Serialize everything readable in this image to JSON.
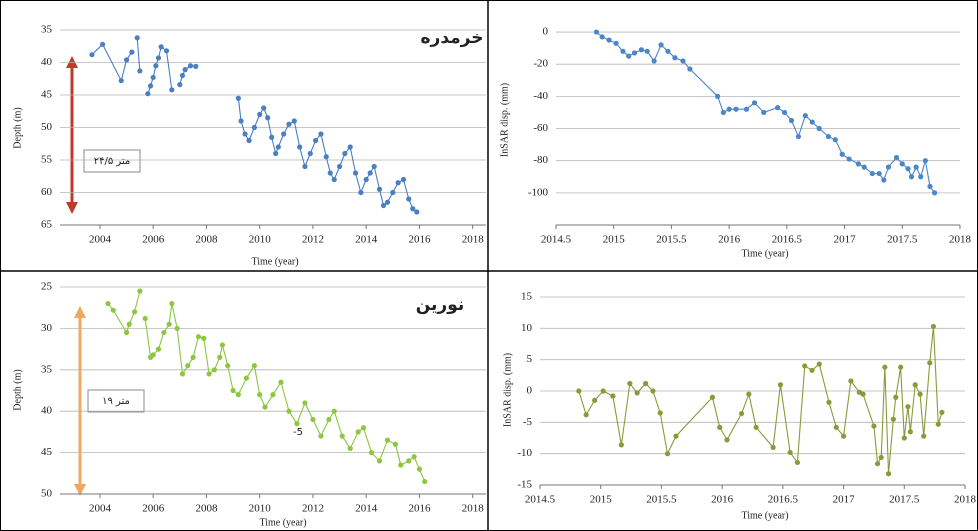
{
  "chart_data": [
    {
      "type": "line",
      "title": "خرمدره",
      "x_label": "Time (year)",
      "y_label": "Depth (m)",
      "annotations": [
        "۲۴/۵ متر"
      ],
      "color": "#4a7fc1",
      "y_inverted": true,
      "grid": true,
      "xlim": [
        2002.5,
        2018.5
      ],
      "xticks": [
        2004,
        2006,
        2008,
        2010,
        2012,
        2014,
        2016,
        2018
      ],
      "ylim": [
        35,
        65
      ],
      "yticks": [
        35,
        40,
        45,
        50,
        55,
        60,
        65
      ],
      "x": [
        2003.7,
        2004.1,
        2004.8,
        2005.0,
        2005.2,
        null,
        2005.4,
        2005.5,
        null,
        2005.8,
        2005.9,
        2006.0,
        2006.1,
        2006.2,
        2006.3,
        2006.5,
        2006.7,
        null,
        2007.0,
        2007.1,
        2007.2,
        2007.4,
        2007.6,
        null,
        2009.2,
        2009.3,
        2009.45,
        2009.6,
        2009.8,
        2010.0,
        2010.15,
        2010.3,
        2010.45,
        2010.6,
        2010.7,
        2010.9,
        2011.1,
        2011.3,
        2011.5,
        2011.7,
        2011.9,
        2012.1,
        2012.3,
        2012.5,
        2012.65,
        2012.8,
        2013.0,
        2013.2,
        2013.4,
        2013.6,
        2013.8,
        2014.0,
        2014.15,
        2014.3,
        2014.5,
        2014.65,
        2014.8,
        2015.0,
        2015.2,
        2015.4,
        2015.6,
        2015.75,
        2015.9
      ],
      "values": [
        38.8,
        37.2,
        42.8,
        39.6,
        38.4,
        null,
        36.2,
        41.3,
        null,
        44.8,
        43.6,
        42.3,
        40.5,
        39.3,
        37.6,
        38.2,
        44.2,
        null,
        43.4,
        42.0,
        41.1,
        40.5,
        40.6,
        null,
        45.5,
        49.0,
        51.0,
        52.0,
        50.0,
        48.0,
        47.0,
        48.5,
        51.5,
        54.0,
        53.0,
        51.0,
        49.5,
        49.0,
        53.0,
        56.0,
        54.0,
        52.0,
        51.0,
        54.5,
        57.0,
        58.0,
        56.0,
        54.0,
        53.0,
        57.0,
        60.0,
        58.0,
        57.0,
        56.0,
        59.5,
        62.0,
        61.5,
        60.0,
        58.5,
        58.0,
        61.0,
        62.5,
        63.0
      ]
    },
    {
      "type": "line",
      "x_label": "Time (year)",
      "y_label": "InSAR disp. (mm)",
      "color": "#4a86c8",
      "grid": true,
      "xlim": [
        2014.5,
        2018
      ],
      "xticks": [
        2014.5,
        2015,
        2015.5,
        2016,
        2016.5,
        2017,
        2017.5,
        2018
      ],
      "ylim": [
        -120,
        5
      ],
      "yticks": [
        -100,
        -80,
        -60,
        -40,
        -20,
        0
      ],
      "x": [
        2014.85,
        2014.9,
        2014.96,
        2015.02,
        2015.08,
        2015.13,
        2015.18,
        2015.24,
        2015.29,
        2015.35,
        2015.41,
        2015.47,
        2015.53,
        2015.6,
        2015.66,
        2015.9,
        2015.95,
        2016.0,
        2016.06,
        2016.15,
        2016.22,
        2016.3,
        2016.42,
        2016.48,
        2016.54,
        2016.6,
        2016.66,
        2016.72,
        2016.78,
        2016.86,
        2016.92,
        2016.98,
        2017.04,
        2017.12,
        2017.17,
        2017.24,
        2017.3,
        2017.34,
        2017.38,
        2017.45,
        2017.5,
        2017.55,
        2017.58,
        2017.62,
        2017.66,
        2017.7,
        2017.74,
        2017.78
      ],
      "values": [
        0,
        -3,
        -5,
        -7,
        -12,
        -15,
        -13,
        -11,
        -12,
        -18,
        -8,
        -12,
        -16,
        -18,
        -23,
        -40,
        -50,
        -48,
        -48,
        -48,
        -44,
        -50,
        -47,
        -50,
        -55,
        -65,
        -52,
        -56,
        -60,
        -65,
        -67,
        -76,
        -79,
        -82,
        -84,
        -88,
        -88,
        -92,
        -84,
        -78,
        -82,
        -85,
        -90,
        -84,
        -90,
        -80,
        -96,
        -100
      ]
    },
    {
      "type": "line",
      "title": "نورین",
      "x_label": "Time (year)",
      "y_label": "Depth (m)",
      "annotations": [
        "۱۹ متر",
        "-5"
      ],
      "color": "#8dc63f",
      "y_inverted": true,
      "grid": true,
      "xlim": [
        2002.5,
        2018.5
      ],
      "xticks": [
        2004,
        2006,
        2008,
        2010,
        2012,
        2014,
        2016,
        2018
      ],
      "ylim": [
        25,
        50
      ],
      "yticks": [
        25,
        30,
        35,
        40,
        45,
        50
      ],
      "x": [
        2004.3,
        2004.5,
        2005.0,
        2005.1,
        2005.3,
        2005.5,
        null,
        2005.7,
        2005.9,
        2006.0,
        2006.2,
        2006.4,
        2006.6,
        2006.7,
        2006.9,
        2007.1,
        2007.3,
        2007.5,
        2007.7,
        2007.9,
        2008.1,
        2008.3,
        2008.5,
        2008.6,
        2008.8,
        2009.0,
        2009.2,
        2009.5,
        2009.8,
        2010.0,
        2010.2,
        2010.5,
        2010.8,
        2011.1,
        2011.4,
        2011.7,
        2012.0,
        2012.3,
        2012.6,
        2012.8,
        2013.1,
        2013.4,
        2013.7,
        2013.9,
        2014.2,
        2014.5,
        2014.8,
        2015.1,
        2015.3,
        2015.6,
        2015.8,
        2016.0,
        2016.2
      ],
      "values": [
        27,
        27.8,
        30.5,
        29.5,
        28,
        25.5,
        null,
        28.8,
        33.5,
        33.2,
        32.5,
        30.5,
        29.5,
        27,
        30,
        35.5,
        34.5,
        33.5,
        31,
        31.2,
        35.5,
        35,
        33.5,
        32,
        34.5,
        37.5,
        38,
        36,
        34.5,
        38,
        39.5,
        38,
        36.5,
        40,
        41.5,
        39,
        41,
        43,
        41,
        40,
        43,
        44.5,
        42.5,
        42,
        45,
        46,
        43.5,
        44,
        46.5,
        46,
        45.5,
        47,
        48.5
      ]
    },
    {
      "type": "line",
      "x_label": "Time (year)",
      "y_label": "InSAR disp. (mm)",
      "color": "#8a9a3a",
      "grid": true,
      "xlim": [
        2014.5,
        2018
      ],
      "xticks": [
        2014.5,
        2015,
        2015.5,
        2016,
        2016.5,
        2017,
        2017.5,
        2018
      ],
      "ylim": [
        -15,
        15
      ],
      "yticks": [
        -15,
        -10,
        -5,
        0,
        5,
        10,
        15
      ],
      "x": [
        2014.82,
        2014.88,
        2014.95,
        2015.02,
        2015.1,
        2015.17,
        2015.24,
        2015.3,
        2015.37,
        2015.43,
        2015.49,
        2015.55,
        2015.62,
        2015.92,
        2015.98,
        2016.04,
        2016.16,
        2016.22,
        2016.28,
        2016.42,
        2016.48,
        2016.56,
        2016.62,
        2016.68,
        2016.74,
        2016.8,
        2016.88,
        2016.94,
        2017.0,
        2017.06,
        2017.13,
        2017.16,
        2017.25,
        2017.28,
        2017.31,
        2017.34,
        2017.37,
        2017.41,
        2017.43,
        2017.47,
        2017.5,
        2017.53,
        2017.55,
        2017.59,
        2017.63,
        2017.66,
        2017.71,
        2017.74,
        2017.78,
        2017.81
      ],
      "values": [
        0,
        -3.8,
        -1.5,
        0,
        -0.8,
        -8.6,
        1.2,
        -0.3,
        1.2,
        0,
        -3.5,
        -10,
        -7.2,
        -1,
        -5.8,
        -7.8,
        -3.6,
        -0.5,
        -5.8,
        -9,
        1,
        -9.8,
        -11.4,
        4,
        3.3,
        4.3,
        -1.8,
        -5.8,
        -7.2,
        1.6,
        -0.2,
        -0.5,
        -5.6,
        -11.6,
        -10.6,
        3.8,
        -13.2,
        -4.5,
        -1,
        3.8,
        -7.5,
        -2.5,
        -6.5,
        1,
        -0.5,
        -7.2,
        4.5,
        10.3,
        -5.3,
        -3.4
      ]
    }
  ]
}
